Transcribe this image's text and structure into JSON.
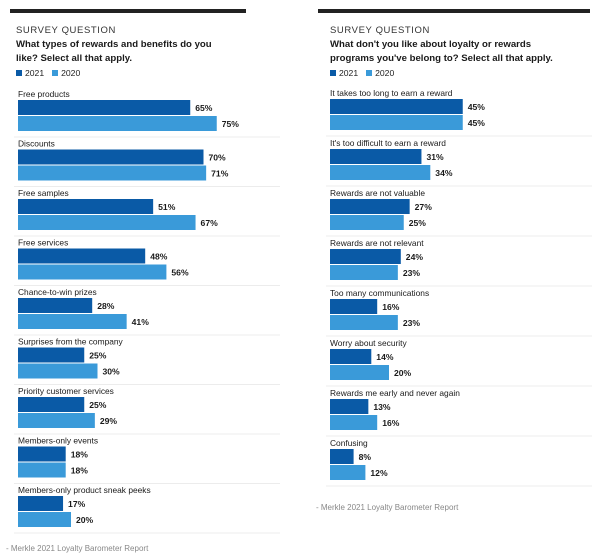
{
  "colors": {
    "series_2021": "#0a5aa6",
    "series_2020": "#3a9ad9",
    "text": "#1a1a1a",
    "rule": "#222222"
  },
  "chart_data": [
    {
      "type": "bar",
      "orientation": "horizontal",
      "survey_label": "SURVEY QUESTION",
      "title": "What types of rewards and benefits do you like? Select all that apply.",
      "legend_placement": "top-left",
      "categories": [
        "Free products",
        "Discounts",
        "Free samples",
        "Free services",
        "Chance-to-win prizes",
        "Surprises from the company",
        "Priority customer services",
        "Members-only events",
        "Members-only product sneak peeks"
      ],
      "series": [
        {
          "name": "2021",
          "values": [
            65,
            70,
            51,
            48,
            28,
            25,
            25,
            18,
            17
          ]
        },
        {
          "name": "2020",
          "values": [
            75,
            71,
            67,
            56,
            41,
            30,
            29,
            18,
            20
          ]
        }
      ],
      "value_suffix": "%",
      "xlim": [
        0,
        100
      ],
      "grid": false,
      "source": "- Merkle 2021 Loyalty Barometer Report"
    },
    {
      "type": "bar",
      "orientation": "horizontal",
      "survey_label": "SURVEY QUESTION",
      "title": "What don't you like about loyalty or rewards programs you've belong to? Select all that apply.",
      "legend_placement": "top-left",
      "categories": [
        "It takes too long to earn a reward",
        "It's too difficult to earn a reward",
        "Rewards are not valuable",
        "Rewards are not relevant",
        "Too many communications",
        "Worry about security",
        "Rewards me early and never again",
        "Confusing"
      ],
      "series": [
        {
          "name": "2021",
          "values": [
            45,
            31,
            27,
            24,
            16,
            14,
            13,
            8
          ]
        },
        {
          "name": "2020",
          "values": [
            45,
            34,
            25,
            23,
            23,
            20,
            16,
            12
          ]
        }
      ],
      "value_suffix": "%",
      "xlim": [
        0,
        60
      ],
      "grid": false,
      "source": "- Merkle 2021 Loyalty Barometer Report"
    }
  ]
}
